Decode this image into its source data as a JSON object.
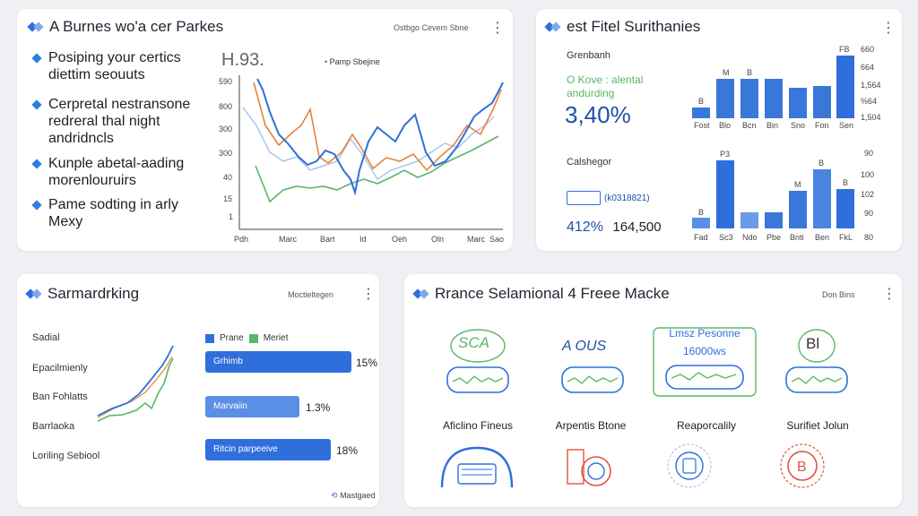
{
  "cards": {
    "top_left": {
      "title": "A Burnes wo'a cer Parkes",
      "header_right": "Ostbgo Cevem Sbne",
      "chart_title": "H.93.",
      "legend_label": "Pamp Sbejine",
      "bullets": [
        "Posiping your certics diettim seouuts",
        "Cerpretal nestransone redreral thal night andridncls",
        "Kunple abetal-aading morenlouruirs",
        "Pame sodting in arly Mexy"
      ],
      "y_ticks": [
        "590",
        "800",
        "300",
        "300",
        "40",
        "15",
        "1"
      ],
      "x_ticks": [
        "Pdh",
        "Marc",
        "Bart",
        "Id",
        "Oeh",
        "Oln",
        "Marc",
        "Sao"
      ]
    },
    "top_right": {
      "title": "est Fitel Surithanies",
      "stat_heading": "Grenbanh",
      "stat_sub": "O Kove : alental andurding",
      "stat_value": "3,40%",
      "lower_heading": "Calshegor",
      "tag_label": "(k0318821)",
      "lower_value_a": "412%",
      "lower_value_b": "164,500",
      "top_chart": {
        "y_ticks": [
          "660",
          "664",
          "1,564",
          "%64",
          "1,504"
        ],
        "x_ticks": [
          "Fost",
          "Blo",
          "Bcn",
          "Bin",
          "Sno",
          "Fon",
          "Sen"
        ],
        "bar_labels": [
          "B",
          "M",
          "B",
          "",
          "",
          "",
          "FB"
        ]
      },
      "bottom_chart": {
        "y_ticks": [
          "90",
          "100",
          "102",
          "90",
          "80"
        ],
        "x_ticks": [
          "Fad",
          "Sc3",
          "Ndo",
          "Pbe",
          "Bnti",
          "Ben",
          "FkL"
        ],
        "bar_labels": [
          "B",
          "P3",
          "",
          "",
          "M",
          "B",
          "B"
        ]
      }
    },
    "bottom_left": {
      "title": "Sarmardrking",
      "header_right": "Moctieltegen",
      "row_labels": [
        "Sadial",
        "Epacilmienly",
        "Ban Fohlatts",
        "Barrlaoka",
        "Loriling Sebiool"
      ],
      "legend": [
        "Prane",
        "Meriet"
      ],
      "hbars": [
        {
          "label": "Grhimb",
          "pct": "15%"
        },
        {
          "label": "Marvaiin",
          "pct": "1.3%"
        },
        {
          "label": "Ritcin parpeeive",
          "pct": "18%"
        }
      ],
      "footer": "Mastgaed"
    },
    "bottom_right": {
      "title": "Rrance Selamional 4 Freee Macke",
      "header_right": "Don Bins",
      "top_tiles": [
        "SCA",
        "A OUS",
        "Lmsz Pesonne 16000ws",
        "Bl"
      ],
      "bottom_labels": [
        "Aficlino Fineus",
        "Arpentis Btone",
        "Reaporcalily",
        "Surifiet Jolun"
      ]
    }
  },
  "colors": {
    "blue": "#2f6fdc",
    "orange": "#e8823a",
    "green": "#5ab768",
    "light_blue": "#a9c6f2",
    "red": "#e0553f"
  },
  "icons": [
    "logo-icon",
    "kebab-menu-icon",
    "diamond-bullet-icon",
    "refresh-icon"
  ]
}
